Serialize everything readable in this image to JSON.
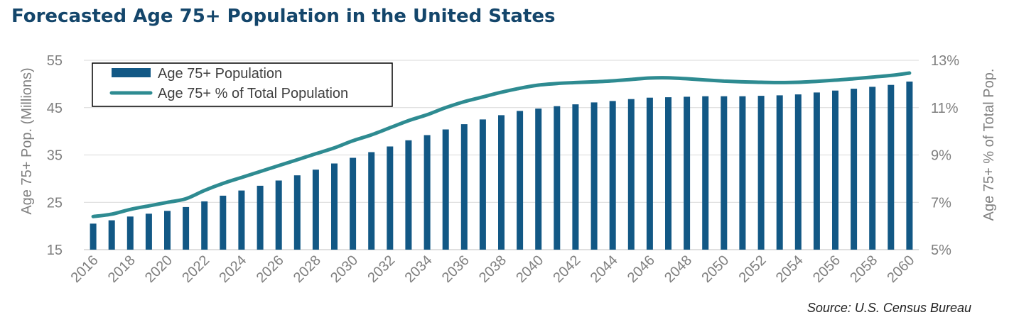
{
  "chart_data": {
    "type": "bar",
    "title": "Forecasted Age 75+ Population in the United States",
    "ylabel": "Age 75+ Pop. (Millions)",
    "y2label": "Age 75+ % of Total Pop.",
    "ylim": [
      15,
      55
    ],
    "yticks": [
      "15",
      "25",
      "35",
      "45",
      "55"
    ],
    "y2lim": [
      5,
      13
    ],
    "y2ticks": [
      "5%",
      "7%",
      "9%",
      "11%",
      "13%"
    ],
    "x": [
      2016,
      2017,
      2018,
      2019,
      2020,
      2021,
      2022,
      2023,
      2024,
      2025,
      2026,
      2027,
      2028,
      2029,
      2030,
      2031,
      2032,
      2033,
      2034,
      2035,
      2036,
      2037,
      2038,
      2039,
      2040,
      2041,
      2042,
      2043,
      2044,
      2045,
      2046,
      2047,
      2048,
      2049,
      2050,
      2051,
      2052,
      2053,
      2054,
      2055,
      2056,
      2057,
      2058,
      2059,
      2060
    ],
    "xtick_labels": [
      "2016",
      "2018",
      "2020",
      "2022",
      "2024",
      "2026",
      "2028",
      "2030",
      "2032",
      "2034",
      "2036",
      "2038",
      "2040",
      "2042",
      "2044",
      "2046",
      "2048",
      "2050",
      "2052",
      "2054",
      "2056",
      "2058",
      "2060"
    ],
    "series": [
      {
        "name": "Age 75+ Population",
        "type": "bar",
        "axis": "left",
        "color": "#125885",
        "values": [
          20.5,
          21.2,
          22.0,
          22.6,
          23.2,
          24.0,
          25.2,
          26.4,
          27.5,
          28.5,
          29.6,
          30.7,
          31.9,
          33.2,
          34.4,
          35.6,
          36.8,
          38.1,
          39.2,
          40.4,
          41.5,
          42.5,
          43.4,
          44.3,
          44.8,
          45.3,
          45.7,
          46.1,
          46.4,
          46.8,
          47.1,
          47.2,
          47.3,
          47.4,
          47.4,
          47.4,
          47.5,
          47.6,
          47.8,
          48.2,
          48.6,
          49.0,
          49.4,
          49.8,
          50.5
        ]
      },
      {
        "name": "Age 75+ % of Total Population",
        "type": "line",
        "axis": "right",
        "color": "#2e8b91",
        "values": [
          6.4,
          6.5,
          6.7,
          6.85,
          7.0,
          7.15,
          7.5,
          7.8,
          8.05,
          8.3,
          8.55,
          8.8,
          9.05,
          9.3,
          9.6,
          9.85,
          10.15,
          10.45,
          10.7,
          11.0,
          11.25,
          11.45,
          11.65,
          11.82,
          11.95,
          12.02,
          12.06,
          12.09,
          12.13,
          12.19,
          12.25,
          12.26,
          12.22,
          12.17,
          12.12,
          12.09,
          12.07,
          12.06,
          12.07,
          12.11,
          12.16,
          12.22,
          12.29,
          12.36,
          12.46
        ]
      }
    ],
    "legend": [
      "Age 75+ Population",
      "Age 75+ % of Total Population"
    ],
    "legend_position": "top-left",
    "grid": true,
    "source": "Source: U.S. Census Bureau"
  }
}
